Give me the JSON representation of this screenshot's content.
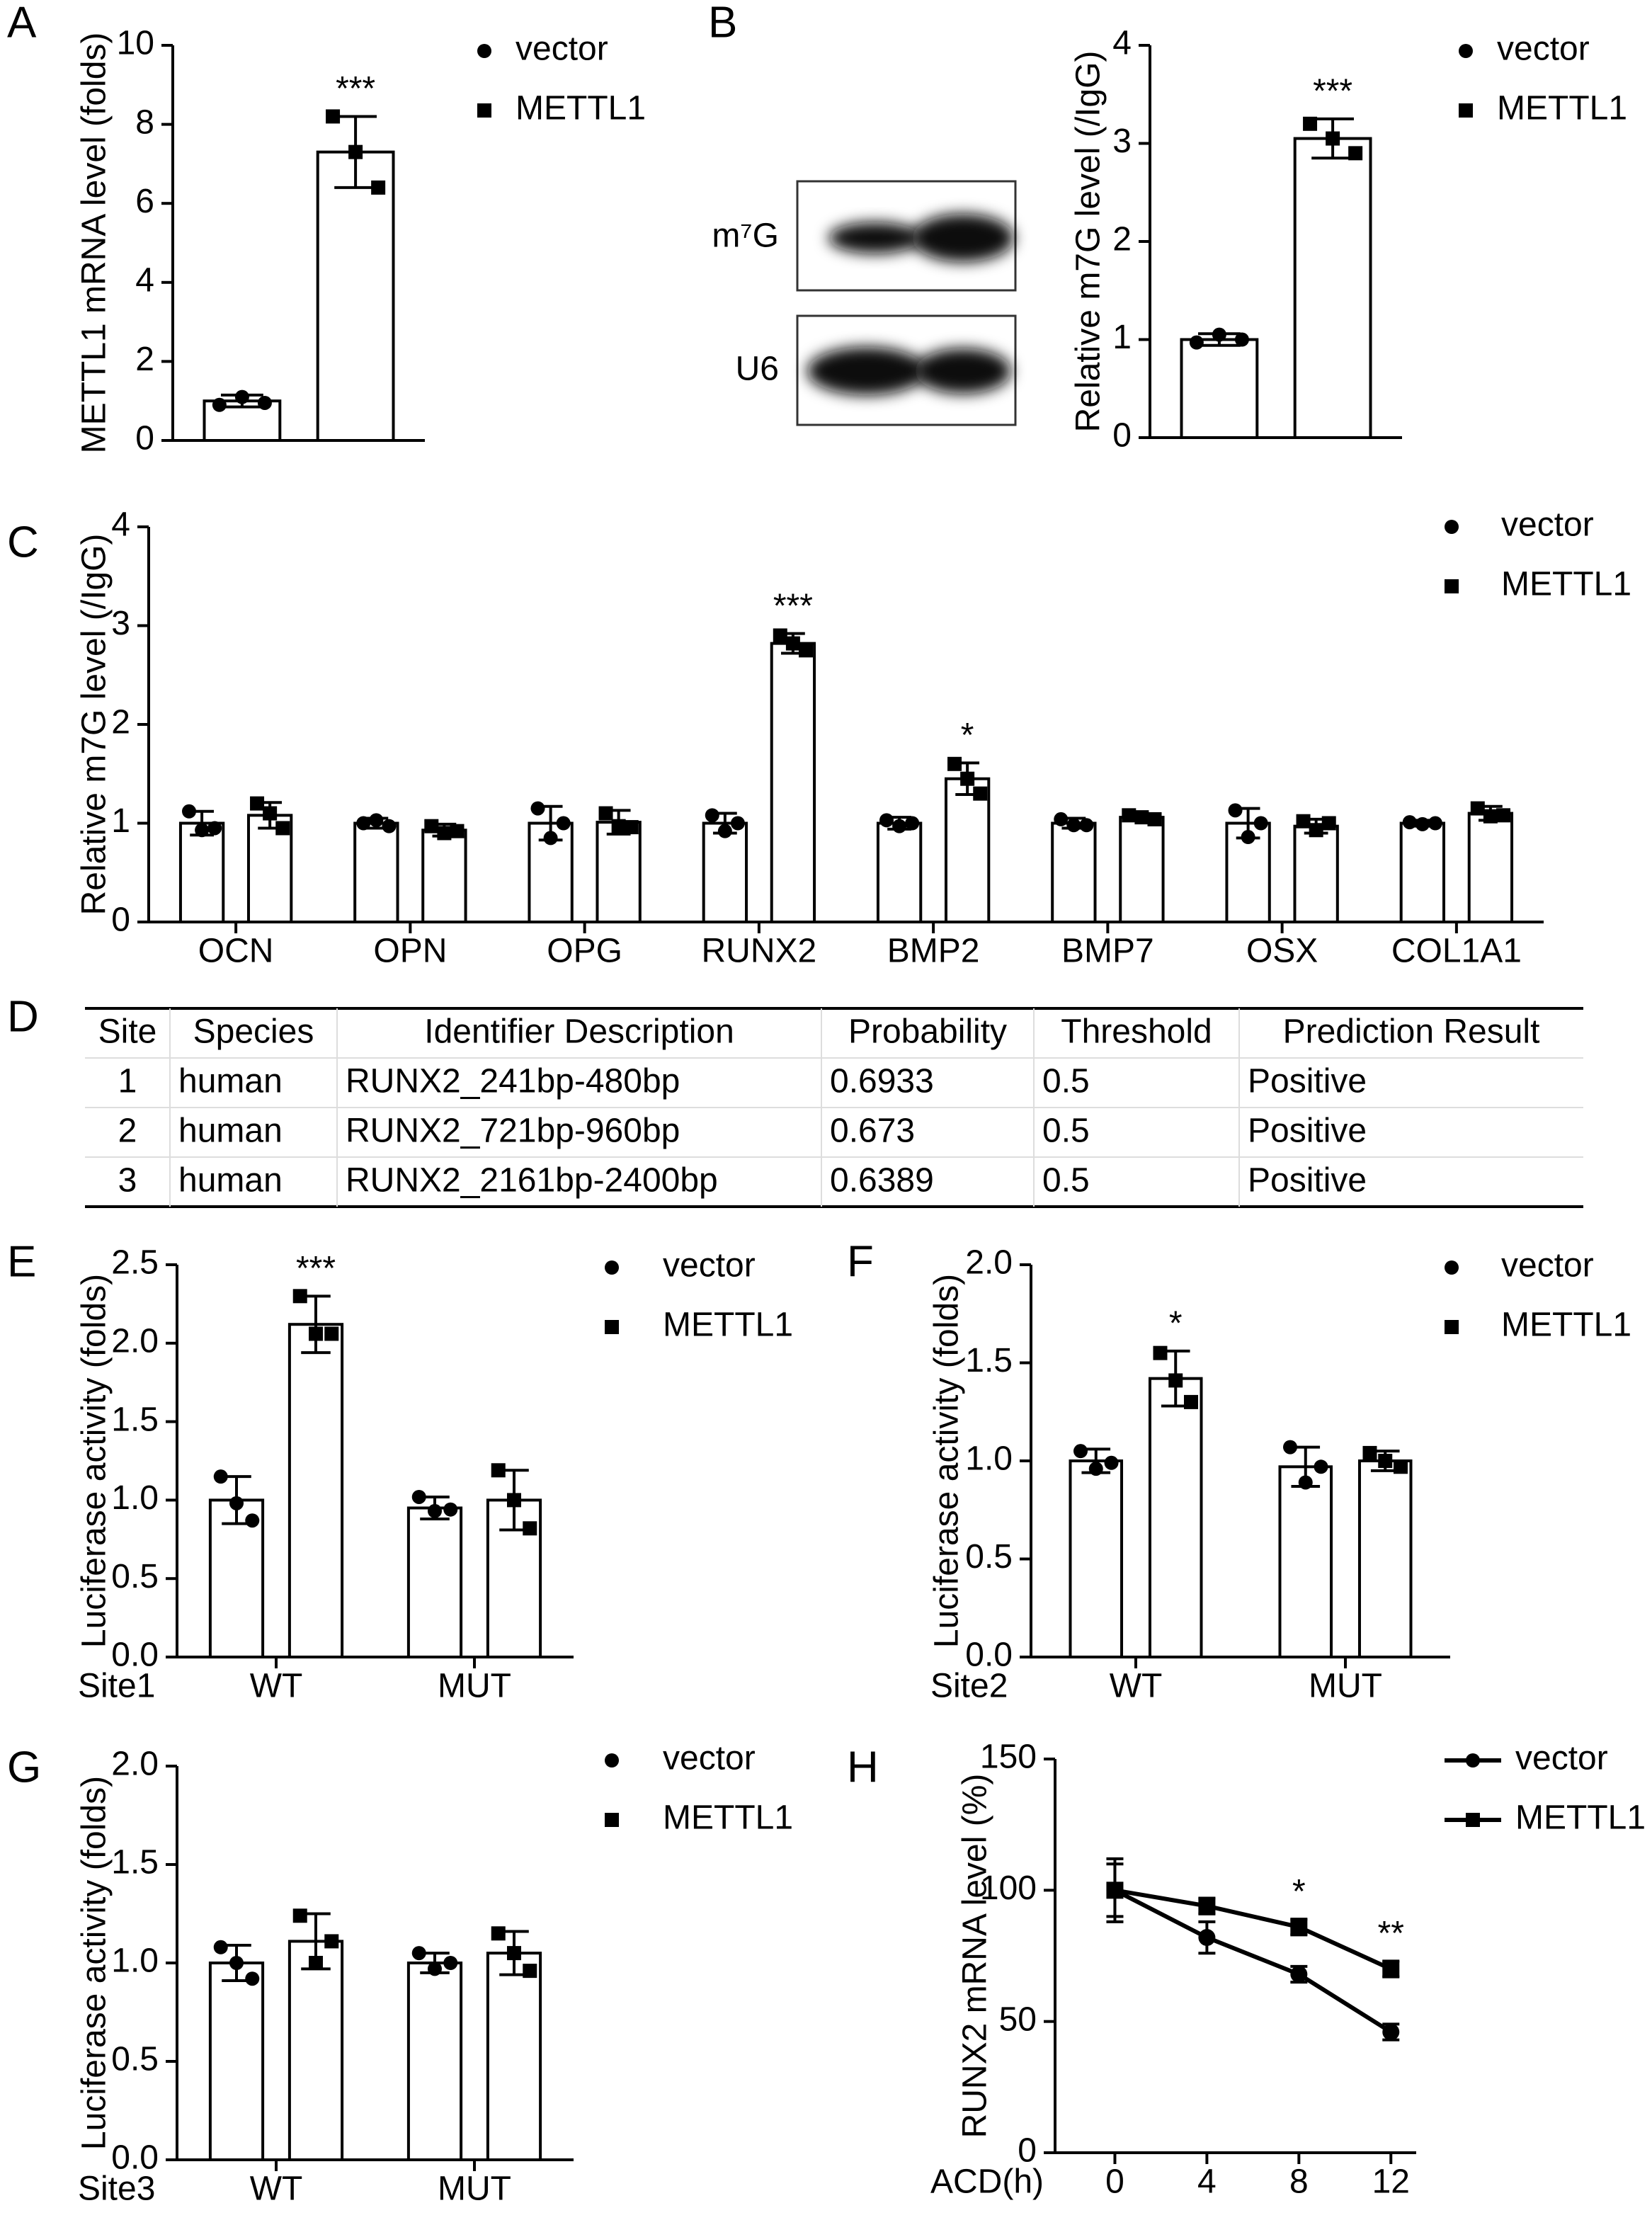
{
  "chart_data": [
    {
      "type": "bar",
      "panel": "A",
      "ylabel": "METTL1 mRNA level (folds)",
      "ylim": [
        0,
        10
      ],
      "yticks": [
        0,
        2,
        4,
        6,
        8,
        10
      ],
      "color": "#000000",
      "categories": [
        null
      ],
      "series": [
        {
          "name": "vector",
          "marker": "circle",
          "values": [
            1.0
          ],
          "errors": [
            0.15
          ],
          "points": [
            [
              0.9,
              1.1,
              0.95
            ]
          ]
        },
        {
          "name": "METTL1",
          "marker": "square",
          "values": [
            7.3
          ],
          "errors": [
            0.9
          ],
          "points": [
            [
              8.2,
              7.3,
              6.4
            ]
          ],
          "annotations": [
            "***"
          ]
        }
      ]
    },
    {
      "type": "bar",
      "panel": "B",
      "blot_labels": [
        "m⁷G",
        "U6"
      ],
      "ylabel": "Relative m7G level (/IgG)",
      "ylim": [
        0,
        4
      ],
      "yticks": [
        0,
        1,
        2,
        3,
        4
      ],
      "color": "#000000",
      "categories": [
        null
      ],
      "series": [
        {
          "name": "vector",
          "marker": "circle",
          "values": [
            1.0
          ],
          "errors": [
            0.06
          ],
          "points": [
            [
              0.97,
              1.05,
              1.0
            ]
          ]
        },
        {
          "name": "METTL1",
          "marker": "square",
          "values": [
            3.05
          ],
          "errors": [
            0.2
          ],
          "points": [
            [
              3.2,
              3.05,
              2.9
            ]
          ],
          "annotations": [
            "***"
          ]
        }
      ]
    },
    {
      "type": "bar",
      "panel": "C",
      "ylabel": "Relative m7G level (/IgG)",
      "ylim": [
        0,
        4
      ],
      "yticks": [
        0,
        1,
        2,
        3,
        4
      ],
      "color": "#000000",
      "categories": [
        "OCN",
        "OPN",
        "OPG",
        "RUNX2",
        "BMP2",
        "BMP7",
        "OSX",
        "COL1A1"
      ],
      "series": [
        {
          "name": "vector",
          "marker": "circle",
          "values": [
            1.0,
            1.0,
            1.0,
            1.0,
            1.0,
            1.0,
            1.0,
            1.0
          ],
          "errors": [
            0.12,
            0.05,
            0.17,
            0.1,
            0.06,
            0.05,
            0.15,
            0.03
          ],
          "points": [
            [
              1.12,
              0.93,
              0.95
            ],
            [
              1.0,
              1.03,
              0.97
            ],
            [
              1.15,
              0.85,
              1.0
            ],
            [
              1.08,
              0.92,
              1.0
            ],
            [
              1.03,
              0.97,
              1.0
            ],
            [
              1.04,
              0.98,
              0.98
            ],
            [
              1.13,
              0.86,
              1.0
            ],
            [
              1.01,
              0.99,
              1.0
            ]
          ]
        },
        {
          "name": "METTL1",
          "marker": "square",
          "values": [
            1.08,
            0.93,
            1.01,
            2.82,
            1.45,
            1.06,
            0.97,
            1.1
          ],
          "errors": [
            0.13,
            0.06,
            0.12,
            0.1,
            0.16,
            0.03,
            0.07,
            0.07
          ],
          "points": [
            [
              1.2,
              1.1,
              0.95
            ],
            [
              0.97,
              0.9,
              0.92
            ],
            [
              1.1,
              0.97,
              0.96
            ],
            [
              2.9,
              2.82,
              2.75
            ],
            [
              1.6,
              1.45,
              1.3
            ],
            [
              1.08,
              1.06,
              1.04
            ],
            [
              1.02,
              0.93,
              1.0
            ],
            [
              1.15,
              1.07,
              1.08
            ]
          ],
          "annotations": [
            null,
            null,
            null,
            "***",
            "*",
            null,
            null,
            null
          ]
        }
      ]
    },
    {
      "type": "table",
      "panel": "D",
      "header": [
        "Site",
        "Species",
        "Identifier Description",
        "Probability",
        "Threshold",
        "Prediction Result"
      ],
      "rows": [
        [
          "1",
          "human",
          "RUNX2_241bp-480bp",
          "0.6933",
          "0.5",
          "Positive"
        ],
        [
          "2",
          "human",
          "RUNX2_721bp-960bp",
          "0.673",
          "0.5",
          "Positive"
        ],
        [
          "3",
          "human",
          "RUNX2_2161bp-2400bp",
          "0.6389",
          "0.5",
          "Positive"
        ]
      ]
    },
    {
      "type": "bar",
      "panel": "E",
      "xlabel": "Site1",
      "ylabel": "Luciferase activity (folds)",
      "ylim": [
        0,
        2.5
      ],
      "yticks": [
        {
          "value": 0,
          "label": "0.0"
        },
        0.5,
        {
          "value": 1,
          "label": "1.0"
        },
        1.5,
        {
          "value": 2,
          "label": "2.0"
        },
        2.5
      ],
      "color": "#000000",
      "categories": [
        "WT",
        "MUT"
      ],
      "series": [
        {
          "name": "vector",
          "marker": "circle",
          "values": [
            1.0,
            0.95
          ],
          "errors": [
            0.15,
            0.07
          ],
          "points": [
            [
              1.15,
              0.98,
              0.87
            ],
            [
              1.02,
              0.93,
              0.94
            ]
          ]
        },
        {
          "name": "METTL1",
          "marker": "square",
          "values": [
            2.12,
            1.0
          ],
          "errors": [
            0.18,
            0.19
          ],
          "points": [
            [
              2.3,
              2.06,
              2.06
            ],
            [
              1.19,
              1.0,
              0.82
            ]
          ],
          "annotations": [
            "***",
            null
          ]
        }
      ]
    },
    {
      "type": "bar",
      "panel": "F",
      "xlabel": "Site2",
      "ylabel": "Luciferase activity (folds)",
      "ylim": [
        0,
        2
      ],
      "yticks": [
        {
          "value": 0,
          "label": "0.0"
        },
        0.5,
        {
          "value": 1,
          "label": "1.0"
        },
        1.5,
        {
          "value": 2,
          "label": "2.0"
        }
      ],
      "color": "#000000",
      "categories": [
        "WT",
        "MUT"
      ],
      "series": [
        {
          "name": "vector",
          "marker": "circle",
          "values": [
            1.0,
            0.97
          ],
          "errors": [
            0.06,
            0.1
          ],
          "points": [
            [
              1.05,
              0.96,
              0.99
            ],
            [
              1.07,
              0.89,
              0.97
            ]
          ]
        },
        {
          "name": "METTL1",
          "marker": "square",
          "values": [
            1.42,
            1.0
          ],
          "errors": [
            0.14,
            0.05
          ],
          "points": [
            [
              1.55,
              1.41,
              1.3
            ],
            [
              1.04,
              1.0,
              0.97
            ]
          ],
          "annotations": [
            "*",
            null
          ]
        }
      ]
    },
    {
      "type": "bar",
      "panel": "G",
      "xlabel": "Site3",
      "ylabel": "Luciferase activity (folds)",
      "ylim": [
        0,
        2
      ],
      "yticks": [
        {
          "value": 0,
          "label": "0.0"
        },
        0.5,
        {
          "value": 1,
          "label": "1.0"
        },
        1.5,
        {
          "value": 2,
          "label": "2.0"
        }
      ],
      "color": "#000000",
      "categories": [
        "WT",
        "MUT"
      ],
      "series": [
        {
          "name": "vector",
          "marker": "circle",
          "values": [
            1.0,
            1.0
          ],
          "errors": [
            0.09,
            0.05
          ],
          "points": [
            [
              1.08,
              1.0,
              0.92
            ],
            [
              1.05,
              0.97,
              1.0
            ]
          ]
        },
        {
          "name": "METTL1",
          "marker": "square",
          "values": [
            1.11,
            1.05
          ],
          "errors": [
            0.14,
            0.11
          ],
          "points": [
            [
              1.24,
              1.0,
              1.11
            ],
            [
              1.15,
              1.05,
              0.96
            ]
          ]
        }
      ]
    },
    {
      "type": "line",
      "panel": "H",
      "xlabel": "ACD(h)",
      "ylabel": "RUNX2 mRNA level (%)",
      "xlim": [
        -2.6,
        13.1
      ],
      "xticks": [
        0,
        4,
        8,
        12
      ],
      "ylim": [
        0,
        150
      ],
      "yticks": [
        0,
        50,
        100,
        150
      ],
      "color": "#000000",
      "x": [
        0,
        4,
        8,
        12
      ],
      "series": [
        {
          "name": "vector",
          "marker": "circle",
          "values": [
            100,
            82,
            68,
            46
          ],
          "errors": [
            12,
            6,
            3,
            3
          ]
        },
        {
          "name": "METTL1",
          "marker": "square",
          "values": [
            100,
            94,
            86,
            70
          ],
          "errors": [
            10,
            3,
            3,
            3
          ],
          "annotations": [
            null,
            null,
            "*",
            "**"
          ]
        }
      ]
    }
  ]
}
